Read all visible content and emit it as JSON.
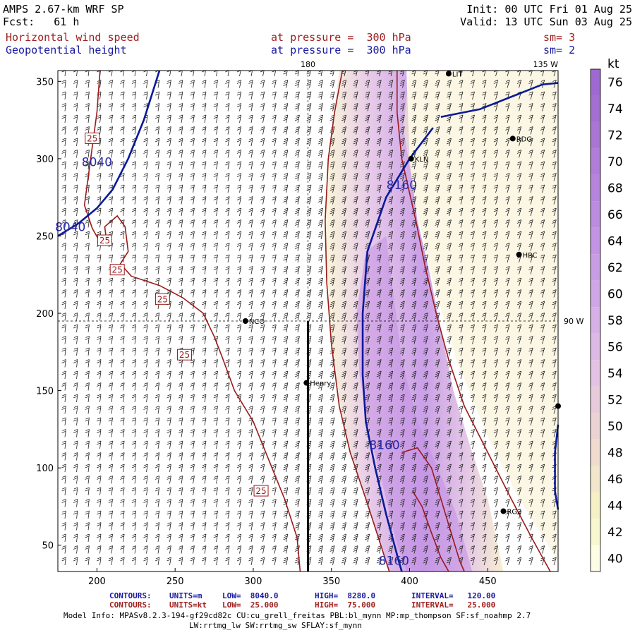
{
  "header": {
    "model": "AMPS 2.67-km WRF SP",
    "forecast": "Fcst:   61 h",
    "init": "Init: 00 UTC Fri 01 Aug 25",
    "valid": "Valid: 13 UTC Sun 03 Aug 25",
    "field1": {
      "name": "Horizontal wind speed",
      "pressure": "at pressure =  300 hPa",
      "smooth": "sm= 3"
    },
    "field2": {
      "name": "Geopotential height",
      "pressure": "at pressure =  300 hPa",
      "smooth": "sm= 2"
    }
  },
  "map": {
    "lon_top": "180",
    "lon_corner": "135 W",
    "lon_right": "90 W",
    "stations": [
      {
        "name": "LIT",
        "x": 425,
        "y": 355
      },
      {
        "name": "RDG",
        "x": 466,
        "y": 313
      },
      {
        "name": "KLN",
        "x": 401,
        "y": 300
      },
      {
        "name": "HRC",
        "x": 470,
        "y": 238
      },
      {
        "name": "NCO",
        "x": 295,
        "y": 195
      },
      {
        "name": "Henry",
        "x": 334,
        "y": 155
      },
      {
        "name": "",
        "x": 495,
        "y": 140
      },
      {
        "name": "RG2",
        "x": 460,
        "y": 72
      }
    ]
  },
  "chart_data": {
    "type": "contour",
    "xlim": [
      175,
      495
    ],
    "ylim": [
      33,
      357
    ],
    "xticks": [
      200,
      250,
      300,
      350,
      400,
      450
    ],
    "yticks": [
      50,
      100,
      150,
      200,
      250,
      300,
      350
    ],
    "height_contours": [
      {
        "label": "8040",
        "points": [
          [
            175,
            250
          ],
          [
            188,
            258
          ],
          [
            200,
            268
          ],
          [
            210,
            280
          ],
          [
            220,
            300
          ],
          [
            230,
            325
          ],
          [
            240,
            357
          ]
        ]
      },
      {
        "label": "8160",
        "points": [
          [
            415,
            320
          ],
          [
            400,
            300
          ],
          [
            385,
            275
          ],
          [
            373,
            240
          ],
          [
            370,
            200
          ],
          [
            370,
            160
          ],
          [
            372,
            130
          ],
          [
            378,
            100
          ],
          [
            385,
            70
          ],
          [
            393,
            40
          ],
          [
            395,
            33
          ]
        ]
      },
      {
        "label": "",
        "points": [
          [
            420,
            327
          ],
          [
            445,
            332
          ],
          [
            465,
            340
          ],
          [
            485,
            348
          ],
          [
            495,
            349
          ]
        ]
      },
      {
        "label": "",
        "points": [
          [
            495,
            128
          ],
          [
            493,
            110
          ],
          [
            493,
            85
          ],
          [
            495,
            73
          ]
        ]
      }
    ],
    "height_labels": [
      {
        "text": "8040",
        "x": 200,
        "y": 298
      },
      {
        "text": "8040",
        "x": 183,
        "y": 256
      },
      {
        "text": "8160",
        "x": 395,
        "y": 283
      },
      {
        "text": "8160",
        "x": 384,
        "y": 115
      },
      {
        "text": "8160",
        "x": 390,
        "y": 40
      }
    ],
    "speed_contours": [
      {
        "label": "25",
        "points": [
          [
            202,
            357
          ],
          [
            200,
            330
          ],
          [
            196,
            300
          ],
          [
            192,
            270
          ],
          [
            197,
            255
          ],
          [
            202,
            246
          ],
          [
            206,
            248
          ],
          [
            205,
            256
          ],
          [
            213,
            263
          ],
          [
            218,
            256
          ],
          [
            220,
            240
          ],
          [
            215,
            232
          ],
          [
            222,
            224
          ],
          [
            240,
            218
          ],
          [
            255,
            210
          ],
          [
            268,
            200
          ],
          [
            275,
            185
          ],
          [
            280,
            172
          ],
          [
            288,
            150
          ],
          [
            300,
            130
          ],
          [
            310,
            105
          ],
          [
            320,
            80
          ],
          [
            328,
            55
          ],
          [
            330,
            33
          ]
        ]
      },
      {
        "label": "",
        "points": [
          [
            357,
            357
          ],
          [
            352,
            330
          ],
          [
            348,
            300
          ],
          [
            346,
            260
          ],
          [
            347,
            220
          ],
          [
            350,
            180
          ],
          [
            355,
            140
          ],
          [
            362,
            110
          ],
          [
            372,
            80
          ],
          [
            380,
            55
          ],
          [
            387,
            33
          ]
        ]
      },
      {
        "label": "",
        "points": [
          [
            392,
            357
          ],
          [
            392,
            330
          ],
          [
            395,
            300
          ],
          [
            404,
            260
          ],
          [
            410,
            230
          ],
          [
            417,
            200
          ],
          [
            425,
            170
          ],
          [
            435,
            140
          ],
          [
            450,
            110
          ],
          [
            465,
            80
          ],
          [
            478,
            55
          ],
          [
            490,
            33
          ]
        ]
      },
      {
        "label": "",
        "points": [
          [
            395,
            110
          ],
          [
            405,
            113
          ],
          [
            414,
            100
          ],
          [
            420,
            80
          ],
          [
            426,
            60
          ],
          [
            432,
            40
          ],
          [
            435,
            33
          ]
        ]
      },
      {
        "label": "",
        "points": [
          [
            402,
            85
          ],
          [
            408,
            75
          ],
          [
            414,
            58
          ],
          [
            420,
            42
          ],
          [
            425,
            33
          ]
        ]
      }
    ],
    "speed_labels": [
      {
        "text": "25",
        "x": 197,
        "y": 313
      },
      {
        "text": "25",
        "x": 205,
        "y": 247
      },
      {
        "text": "25",
        "x": 213,
        "y": 228
      },
      {
        "text": "25",
        "x": 242,
        "y": 209
      },
      {
        "text": "25",
        "x": 256,
        "y": 173
      },
      {
        "text": "25",
        "x": 305,
        "y": 85
      }
    ],
    "colorbar": {
      "unit": "kt",
      "levels": [
        40,
        42,
        44,
        46,
        48,
        50,
        52,
        54,
        56,
        58,
        60,
        62,
        64,
        66,
        68,
        70,
        72,
        74,
        76
      ],
      "colors": [
        "#fdfde6",
        "#f9f7cf",
        "#f5f0c6",
        "#f2e6cc",
        "#efdccf",
        "#ecd3d3",
        "#e8cbdb",
        "#e3c2e3",
        "#ddb9e6",
        "#d6b0e6",
        "#cfa6e6",
        "#c99de6",
        "#c294e3",
        "#bc8ce0",
        "#b684dc",
        "#b07dd9",
        "#aa76d6",
        "#a46fd3",
        "#9e69d0"
      ]
    }
  },
  "footer": {
    "c1_label": "CONTOURS:",
    "c1_units": "UNITS=m",
    "c1_low": "LOW=  8040.0",
    "c1_high": "HIGH=  8280.0",
    "c1_interval": "INTERVAL=   120.00",
    "c2_label": "CONTOURS:",
    "c2_units": "UNITS=kt",
    "c2_low": "LOW=  25.000",
    "c2_high": "HIGH=  75.000",
    "c2_interval": "INTERVAL=   25.000",
    "model_info1": "Model Info: MPASv8.2.3-194-gf29cd82c CU:cu_grell_freitas PBL:bl_mynn MP:mp_thompson SF:sf_noahmp 2.7",
    "model_info2": "LW:rrtmg_lw SW:rrtmg_sw SFLAY:sf_mynn"
  }
}
